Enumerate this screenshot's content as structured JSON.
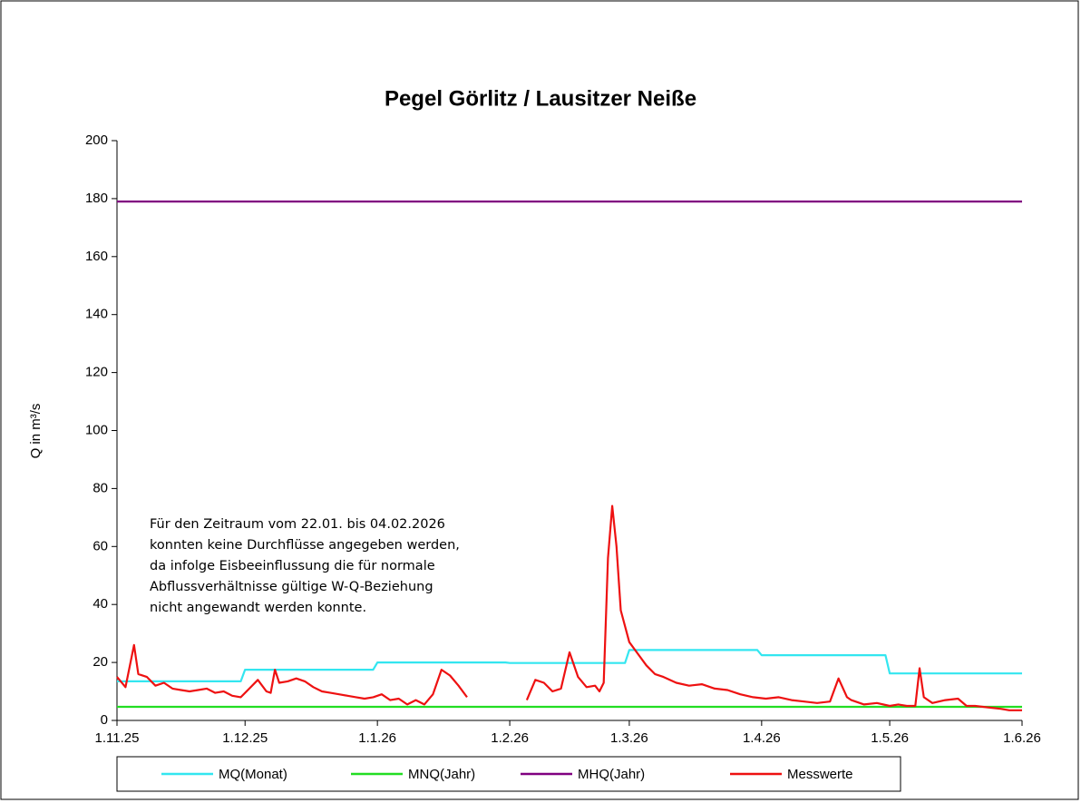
{
  "chart_data": {
    "type": "line",
    "title": "Pegel Görlitz / Lausitzer Neiße",
    "y_label": "Q in m³/s",
    "annotation": [
      "Für den Zeitraum vom 22.01. bis 04.02.2026",
      "konnten keine Durchflüsse angegeben werden,",
      "da infolge Eisbeeinflussung die für normale",
      "Abflussverhältnisse gültige W-Q-Beziehung",
      "nicht angewandt werden konnte."
    ],
    "xlim": [
      "2025-11-01",
      "2026-06-01"
    ],
    "xticks": [
      {
        "value": "2025-11-01",
        "label": "1.11.25"
      },
      {
        "value": "2025-12-01",
        "label": "1.12.25"
      },
      {
        "value": "2026-01-01",
        "label": "1.1.26"
      },
      {
        "value": "2026-02-01",
        "label": "1.2.26"
      },
      {
        "value": "2026-03-01",
        "label": "1.3.26"
      },
      {
        "value": "2026-04-01",
        "label": "1.4.26"
      },
      {
        "value": "2026-05-01",
        "label": "1.5.26"
      },
      {
        "value": "2026-06-01",
        "label": "1.6.26"
      }
    ],
    "ylim": [
      0,
      200
    ],
    "yticks": [
      0,
      20,
      40,
      60,
      80,
      100,
      120,
      140,
      160,
      180,
      200
    ],
    "legend": "bottom",
    "series": [
      {
        "name": "MQ(Monat)",
        "color": "#33e6f0",
        "x": [
          "2025-11-01",
          "2025-11-30",
          "2025-12-01",
          "2025-12-31",
          "2026-01-01",
          "2026-01-31",
          "2026-02-01",
          "2026-02-28",
          "2026-03-01",
          "2026-03-31",
          "2026-04-01",
          "2026-04-30",
          "2026-05-01",
          "2026-06-01"
        ],
        "values": [
          13.5,
          13.5,
          17.5,
          17.5,
          20,
          20,
          19.8,
          19.8,
          24.3,
          24.3,
          22.5,
          22.5,
          16.2,
          16.2
        ]
      },
      {
        "name": "MNQ(Jahr)",
        "color": "#22dd22",
        "x": [
          "2025-11-01",
          "2026-06-01"
        ],
        "values": [
          4.7,
          4.7
        ]
      },
      {
        "name": "MHQ(Jahr)",
        "color": "#800080",
        "x": [
          "2025-11-01",
          "2026-06-01"
        ],
        "values": [
          179,
          179
        ]
      },
      {
        "name": "Messwerte",
        "color": "#ee1111",
        "x": [
          "2025-11-01",
          "2025-11-03",
          "2025-11-05",
          "2025-11-06",
          "2025-11-08",
          "2025-11-10",
          "2025-11-12",
          "2025-11-14",
          "2025-11-16",
          "2025-11-18",
          "2025-11-20",
          "2025-11-22",
          "2025-11-24",
          "2025-11-26",
          "2025-11-28",
          "2025-11-30",
          "2025-12-02",
          "2025-12-04",
          "2025-12-06",
          "2025-12-07",
          "2025-12-08",
          "2025-12-09",
          "2025-12-11",
          "2025-12-13",
          "2025-12-15",
          "2025-12-17",
          "2025-12-19",
          "2025-12-21",
          "2025-12-23",
          "2025-12-25",
          "2025-12-27",
          "2025-12-29",
          "2025-12-31",
          "2026-01-02",
          "2026-01-04",
          "2026-01-06",
          "2026-01-08",
          "2026-01-10",
          "2026-01-12",
          "2026-01-14",
          "2026-01-16",
          "2026-01-18",
          "2026-01-20",
          "2026-01-22",
          "2026-01-28",
          "2026-02-05",
          "2026-02-07",
          "2026-02-09",
          "2026-02-11",
          "2026-02-13",
          "2026-02-15",
          "2026-02-17",
          "2026-02-19",
          "2026-02-21",
          "2026-02-22",
          "2026-02-23",
          "2026-02-24",
          "2026-02-25",
          "2026-02-26",
          "2026-02-27",
          "2026-03-01",
          "2026-03-03",
          "2026-03-05",
          "2026-03-07",
          "2026-03-09",
          "2026-03-12",
          "2026-03-15",
          "2026-03-18",
          "2026-03-21",
          "2026-03-24",
          "2026-03-27",
          "2026-03-30",
          "2026-04-02",
          "2026-04-05",
          "2026-04-08",
          "2026-04-11",
          "2026-04-14",
          "2026-04-17",
          "2026-04-19",
          "2026-04-21",
          "2026-04-22",
          "2026-04-25",
          "2026-04-28",
          "2026-05-01",
          "2026-05-03",
          "2026-05-05",
          "2026-05-07",
          "2026-05-08",
          "2026-05-09",
          "2026-05-11",
          "2026-05-14",
          "2026-05-17",
          "2026-05-19",
          "2026-05-21",
          "2026-05-24",
          "2026-05-27",
          "2026-05-29",
          "2026-06-01"
        ],
        "values": [
          15,
          11.5,
          26,
          16,
          15,
          12,
          13,
          11,
          10.5,
          10,
          10.5,
          11,
          9.5,
          10,
          8.5,
          8,
          11,
          14,
          10,
          9.5,
          17.5,
          13,
          13.5,
          14.5,
          13.5,
          11.5,
          10,
          9.5,
          9,
          8.5,
          8,
          7.5,
          8,
          9,
          7,
          7.5,
          5.5,
          7,
          5.5,
          9,
          17.5,
          15.5,
          12,
          8,
          null,
          7,
          14,
          13,
          10,
          11,
          23.5,
          15,
          11.5,
          12,
          10,
          13,
          56,
          74,
          60,
          38,
          27,
          23,
          19,
          16,
          15,
          13,
          12,
          12.5,
          11,
          10.5,
          9,
          8,
          7.5,
          8,
          7,
          6.5,
          6,
          6.5,
          14.5,
          8,
          7,
          5.5,
          6,
          5,
          5.5,
          5,
          5,
          18,
          8,
          6,
          7,
          7.5,
          5,
          5,
          4.5,
          4,
          3.5,
          3.5
        ]
      }
    ]
  }
}
